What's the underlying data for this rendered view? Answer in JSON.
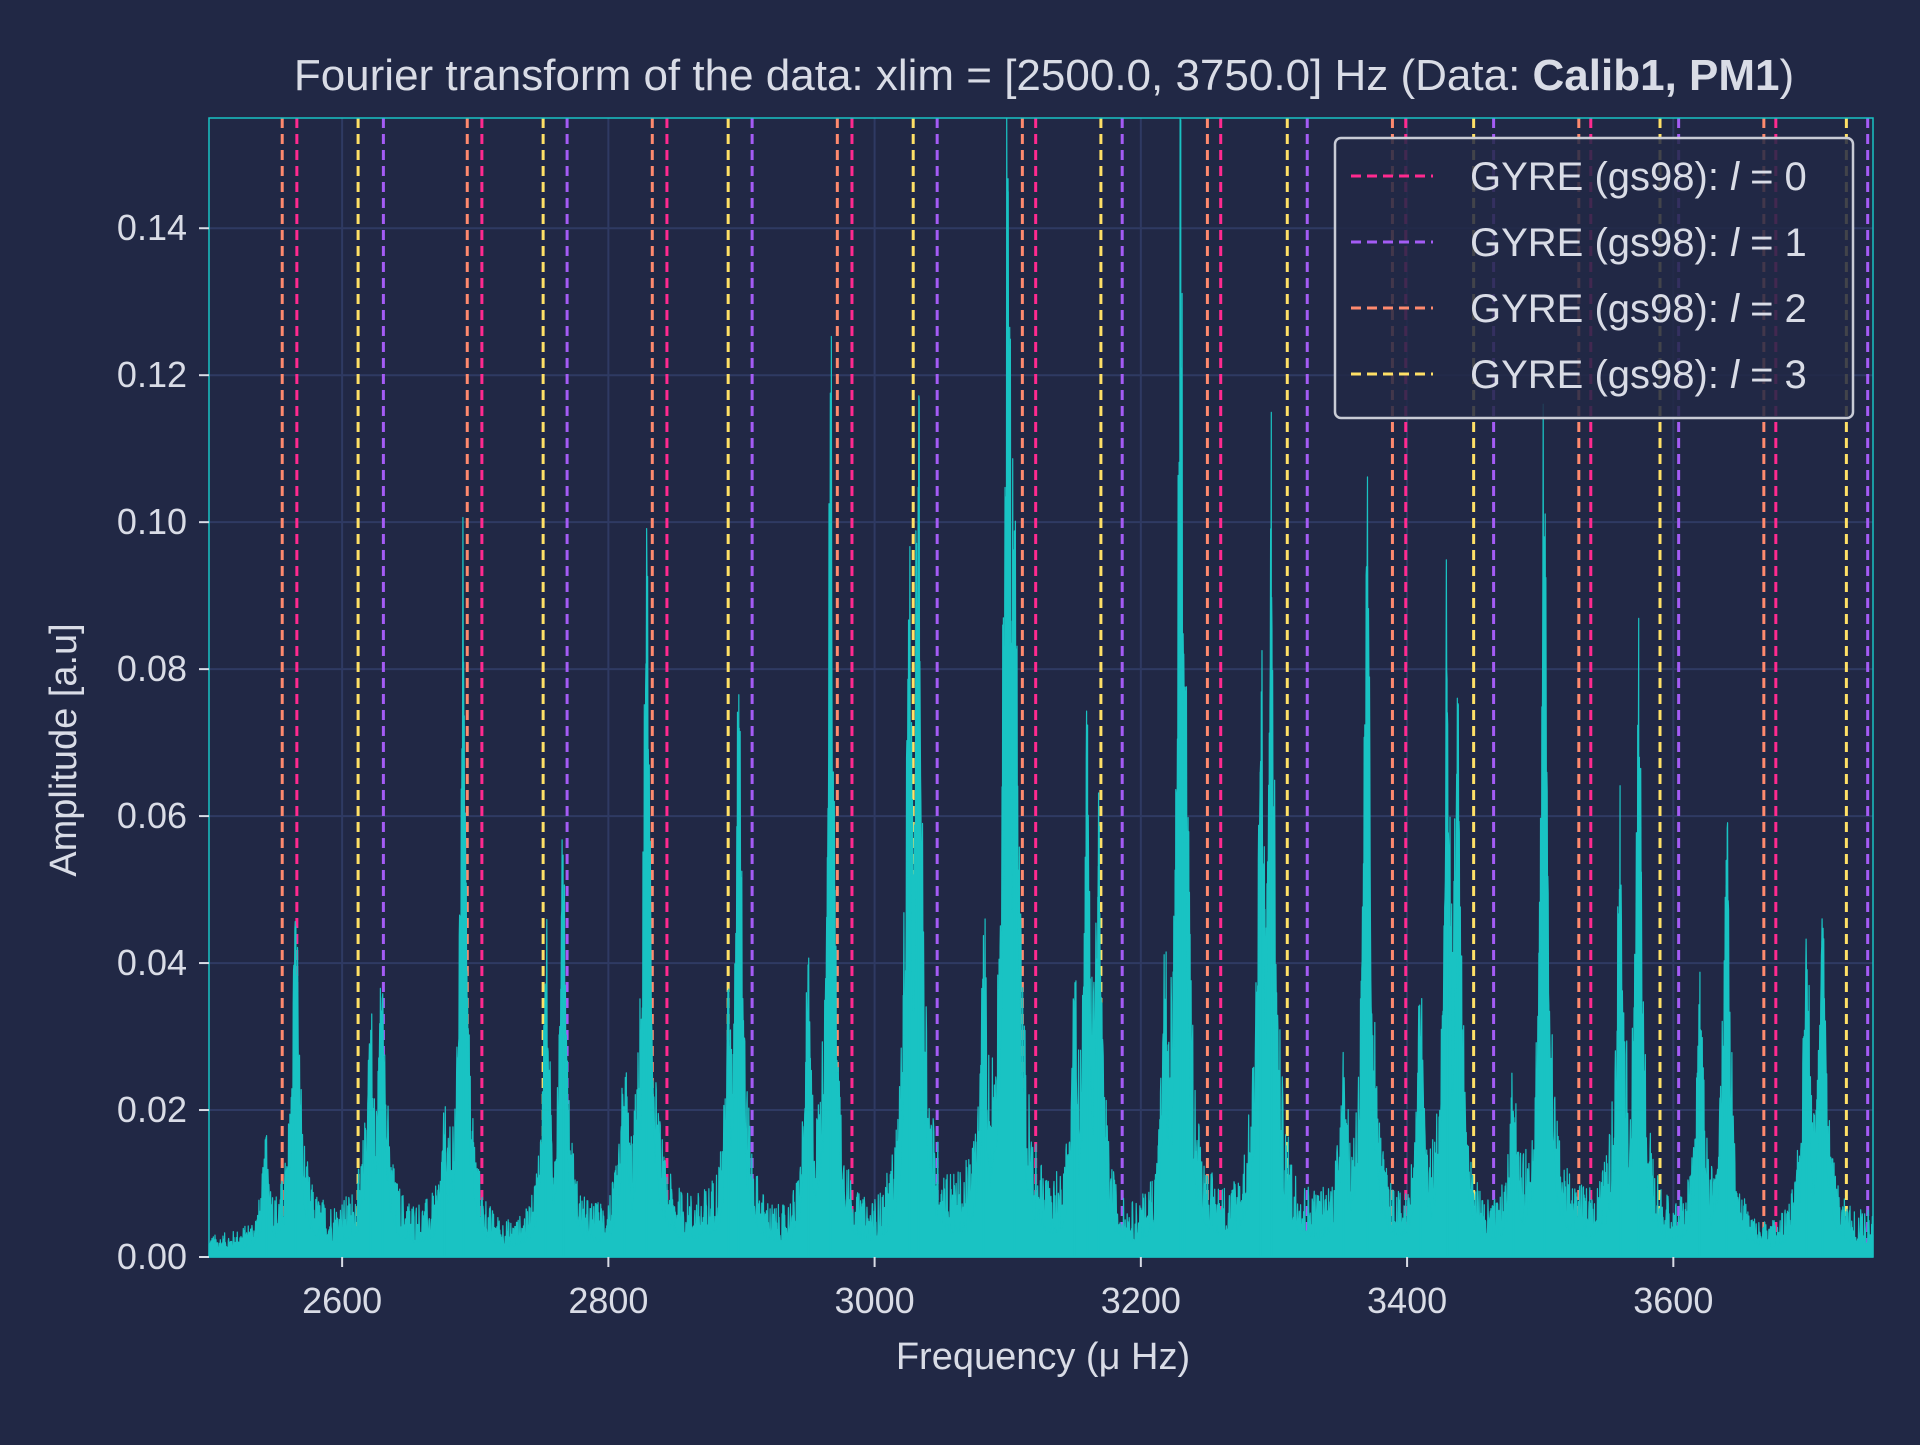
{
  "chart_data": {
    "type": "line",
    "title_prefix": "Fourier transform of the data: xlim = [2500.0, 3750.0] Hz (Data: ",
    "title_bold": "Calib1, PM1",
    "title_suffix": ")",
    "xlabel": "Frequency (μ Hz)",
    "ylabel": "Amplitude [a.u]",
    "xlim": [
      2500,
      3750
    ],
    "ylim": [
      0,
      0.155
    ],
    "xticks": [
      2600,
      2800,
      3000,
      3200,
      3400,
      3600
    ],
    "xtick_labels": [
      "2600",
      "2800",
      "3000",
      "3200",
      "3400",
      "3600"
    ],
    "yticks": [
      0.0,
      0.02,
      0.04,
      0.06,
      0.08,
      0.1,
      0.12,
      0.14
    ],
    "ytick_labels": [
      "0.00",
      "0.02",
      "0.04",
      "0.06",
      "0.08",
      "0.10",
      "0.12",
      "0.14"
    ],
    "grid": true,
    "legend_position": "top-right",
    "colors": {
      "background": "#212845",
      "spectrum": "#19c3c3",
      "grid": "#2f3a63",
      "text": "#d9dce6"
    },
    "spectrum": {
      "name": "",
      "noise_floor": 0.003,
      "peaks": [
        {
          "x": 2543,
          "amp": 0.012
        },
        {
          "x": 2565,
          "amp": 0.045
        },
        {
          "x": 2621,
          "amp": 0.025
        },
        {
          "x": 2630,
          "amp": 0.033
        },
        {
          "x": 2677,
          "amp": 0.011
        },
        {
          "x": 2691,
          "amp": 0.081
        },
        {
          "x": 2753,
          "amp": 0.036
        },
        {
          "x": 2766,
          "amp": 0.047
        },
        {
          "x": 2812,
          "amp": 0.019
        },
        {
          "x": 2829,
          "amp": 0.086
        },
        {
          "x": 2890,
          "amp": 0.022
        },
        {
          "x": 2898,
          "amp": 0.072
        },
        {
          "x": 2950,
          "amp": 0.031
        },
        {
          "x": 2967,
          "amp": 0.102
        },
        {
          "x": 3026,
          "amp": 0.074
        },
        {
          "x": 3033,
          "amp": 0.1
        },
        {
          "x": 3082,
          "amp": 0.03
        },
        {
          "x": 3100,
          "amp": 0.145
        },
        {
          "x": 3105,
          "amp": 0.086
        },
        {
          "x": 3150,
          "amp": 0.027
        },
        {
          "x": 3160,
          "amp": 0.057
        },
        {
          "x": 3168,
          "amp": 0.049
        },
        {
          "x": 3218,
          "amp": 0.025
        },
        {
          "x": 3230,
          "amp": 0.115
        },
        {
          "x": 3233,
          "amp": 0.068
        },
        {
          "x": 3290,
          "amp": 0.066
        },
        {
          "x": 3298,
          "amp": 0.084
        },
        {
          "x": 3352,
          "amp": 0.021
        },
        {
          "x": 3370,
          "amp": 0.094
        },
        {
          "x": 3410,
          "amp": 0.03
        },
        {
          "x": 3430,
          "amp": 0.069
        },
        {
          "x": 3438,
          "amp": 0.064
        },
        {
          "x": 3480,
          "amp": 0.019
        },
        {
          "x": 3503,
          "amp": 0.098
        },
        {
          "x": 3560,
          "amp": 0.049
        },
        {
          "x": 3574,
          "amp": 0.065
        },
        {
          "x": 3620,
          "amp": 0.031
        },
        {
          "x": 3640,
          "amp": 0.054
        },
        {
          "x": 3700,
          "amp": 0.039
        },
        {
          "x": 3712,
          "amp": 0.043
        }
      ]
    },
    "series": [
      {
        "name": "GYRE (gs98): l = 0",
        "label_prefix": "GYRE (gs98): ",
        "label_var": "l",
        "label_value": "= 0",
        "color": "#ff2a8f",
        "x": [
          2566,
          2705,
          2844,
          2983,
          3121,
          3260,
          3399,
          3538,
          3677
        ]
      },
      {
        "name": "GYRE (gs98): l = 1",
        "label_prefix": "GYRE (gs98): ",
        "label_var": "l",
        "label_value": "= 1",
        "color": "#a45cf5",
        "x": [
          2631,
          2769,
          2908,
          3047,
          3186,
          3325,
          3465,
          3604,
          3746
        ]
      },
      {
        "name": "GYRE (gs98): l = 2",
        "label_prefix": "GYRE (gs98): ",
        "label_var": "l",
        "label_value": "= 2",
        "color": "#ff8a6e",
        "x": [
          2555,
          2694,
          2833,
          2972,
          3111,
          3250,
          3389,
          3529,
          3668
        ]
      },
      {
        "name": "GYRE (gs98): l = 3",
        "label_prefix": "GYRE (gs98): ",
        "label_var": "l",
        "label_value": "= 3",
        "color": "#ffe066",
        "x": [
          2612,
          2751,
          2890,
          3029,
          3170,
          3310,
          3450,
          3590,
          3730
        ]
      }
    ]
  }
}
